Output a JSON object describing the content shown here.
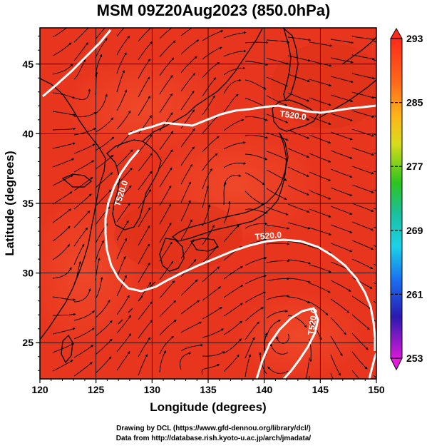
{
  "title": "MSM 09Z20Aug2023 (850.0hPa)",
  "map": {
    "xlabel": "Longitude (degrees)",
    "ylabel": "Latitude  (degrees)",
    "lon_range": [
      120,
      150
    ],
    "lat_range": [
      22.4,
      47.6
    ],
    "lon_ticks": [
      "120",
      "125",
      "130",
      "135",
      "140",
      "145",
      "150"
    ],
    "lat_ticks": [
      "25",
      "30",
      "35",
      "40",
      "45"
    ],
    "contour_labels": [
      "T520.0",
      "T520.0",
      "T520.0",
      "T520.0"
    ],
    "colorbar_ticks": [
      "293",
      "285",
      "277",
      "269",
      "261",
      "253"
    ],
    "colorbar_range": [
      253,
      293
    ],
    "field_color": "#e8361e",
    "contour_color": "#ffffff",
    "colorbar_colors": [
      "#ff2a1a",
      "#ff8a1a",
      "#e8d41a",
      "#3ac21e",
      "#1ad2e0",
      "#1a6cf0",
      "#2a1ab0",
      "#c01ad8"
    ]
  },
  "credits": {
    "line1": "Drawing by DCL (https://www.gfd-dennou.org/library/dcl/)",
    "line2": "Data from http://database.rish.kyoto-u.ac.jp/arch/jmadata/"
  }
}
